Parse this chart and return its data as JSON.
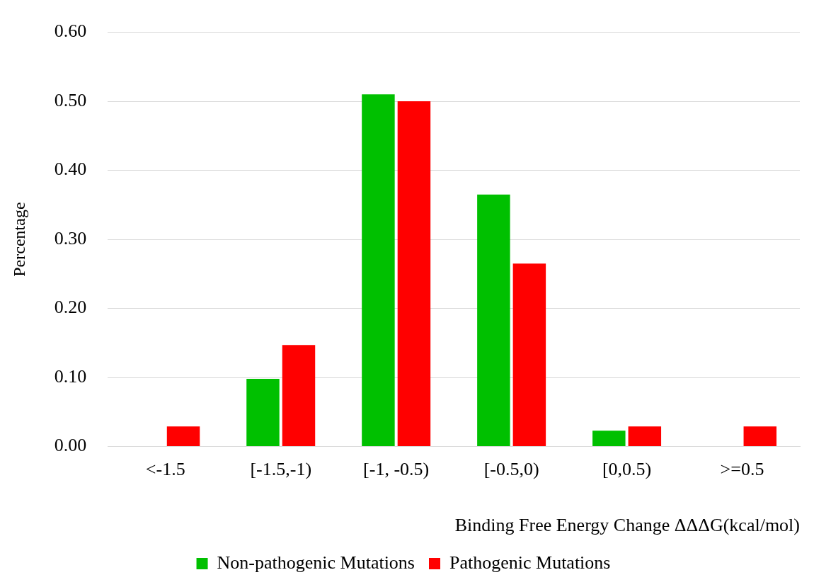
{
  "chart_data": {
    "type": "bar",
    "xlabel": "Binding Free Energy Change ΔΔΔG(kcal/mol)",
    "ylabel": "Percentage",
    "categories": [
      "<-1.5",
      "[-1.5,-1)",
      "[-1, -0.5)",
      "[-0.5,0)",
      "[0,0.5)",
      ">=0.5"
    ],
    "series": [
      {
        "name": "Non-pathogenic Mutations",
        "color": "#00c000",
        "values": [
          0,
          0.098,
          0.51,
          0.365,
          0.023,
          0
        ]
      },
      {
        "name": "Pathogenic Mutations",
        "color": "#ff0000",
        "values": [
          0.029,
          0.147,
          0.5,
          0.265,
          0.029,
          0.029
        ]
      }
    ],
    "ylim": [
      0,
      0.6
    ],
    "yticks": [
      {
        "value": 0,
        "label": "0.00"
      },
      {
        "value": 0.1,
        "label": "0.10"
      },
      {
        "value": 0.2,
        "label": "0.20"
      },
      {
        "value": 0.3,
        "label": "0.30"
      },
      {
        "value": 0.4,
        "label": "0.40"
      },
      {
        "value": 0.5,
        "label": "0.50"
      },
      {
        "value": 0.6,
        "label": "0.60"
      }
    ],
    "grid": "y",
    "legend": "bottom"
  }
}
